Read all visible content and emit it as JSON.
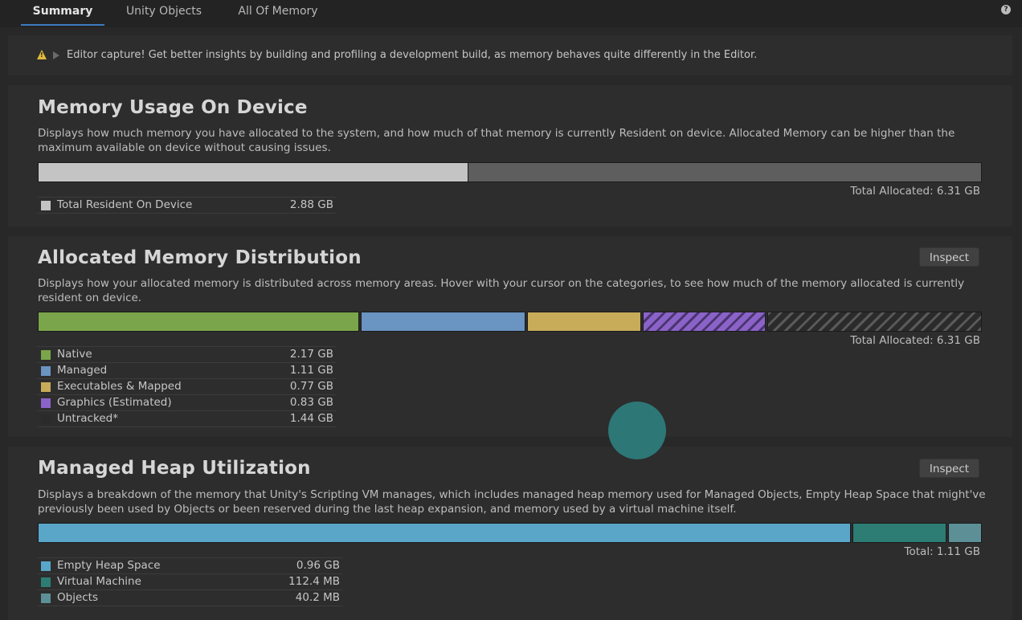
{
  "tabs": [
    {
      "label": "Summary",
      "active": true
    },
    {
      "label": "Unity Objects",
      "active": false
    },
    {
      "label": "All Of Memory",
      "active": false
    }
  ],
  "help_icon": "help-icon",
  "warning": {
    "icon": "warning-icon",
    "text": "Editor capture! Get better insights by building and profiling a development build, as memory behaves quite differently in the Editor."
  },
  "usage": {
    "title": "Memory Usage On Device",
    "description": "Displays how much memory you have allocated to the system, and how much of that memory is currently Resident on device. Allocated Memory can be higher than the maximum available on device without causing issues.",
    "total": "Total Allocated: 6.31 GB",
    "resident_fraction": 0.456,
    "legend": [
      {
        "name": "Total Resident On Device",
        "value": "2.88 GB",
        "color": "#c4c4c4"
      }
    ]
  },
  "distribution": {
    "title": "Allocated Memory Distribution",
    "inspect_label": "Inspect",
    "description": "Displays how your allocated memory is distributed across memory areas. Hover with your cursor on the categories, to see how much of the memory allocated is currently resident on device.",
    "total": "Total Allocated: 6.31 GB",
    "legend": [
      {
        "name": "Native",
        "value": "2.17 GB",
        "color": "#7ba54a"
      },
      {
        "name": "Managed",
        "value": "1.11 GB",
        "color": "#6a94c2"
      },
      {
        "name": "Executables & Mapped",
        "value": "0.77 GB",
        "color": "#c8ac5a"
      },
      {
        "name": "Graphics (Estimated)",
        "value": "0.83 GB",
        "color": "#8b63c8"
      },
      {
        "name": "Untracked*",
        "value": "1.44 GB",
        "color": "#2b2b2b"
      }
    ]
  },
  "heap": {
    "title": "Managed Heap Utilization",
    "inspect_label": "Inspect",
    "description": "Displays a breakdown of the memory that Unity's Scripting VM manages, which includes managed heap memory used for Managed Objects, Empty Heap Space that might've previously been used by Objects or been reserved during the last heap expansion, and memory used by a virtual machine itself.",
    "total": "Total: 1.11 GB",
    "legend": [
      {
        "name": "Empty Heap Space",
        "value": "0.96 GB",
        "color": "#59a6c9"
      },
      {
        "name": "Virtual Machine",
        "value": "112.4 MB",
        "color": "#2d7d74"
      },
      {
        "name": "Objects",
        "value": "40.2 MB",
        "color": "#5c8f96"
      }
    ]
  }
}
